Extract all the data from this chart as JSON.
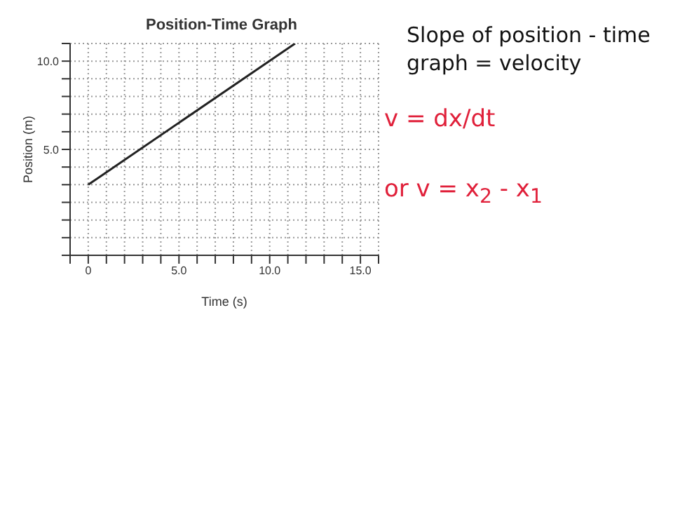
{
  "chart_data": {
    "type": "line",
    "title": "Position-Time Graph",
    "xlabel": "Time (s)",
    "ylabel": "Position (m)",
    "x": [
      0,
      11.4
    ],
    "series": [
      {
        "color": "#222222",
        "values": [
          3,
          11
        ]
      }
    ],
    "xlim": [
      -1,
      16
    ],
    "ylim": [
      -1,
      11
    ],
    "xticks": [
      {
        "value": -1,
        "label": null
      },
      {
        "value": 0,
        "label": "0"
      },
      {
        "value": 1,
        "label": null
      },
      {
        "value": 2,
        "label": null
      },
      {
        "value": 3,
        "label": null
      },
      {
        "value": 4,
        "label": null
      },
      {
        "value": 5,
        "label": "5.0"
      },
      {
        "value": 6,
        "label": null
      },
      {
        "value": 7,
        "label": null
      },
      {
        "value": 8,
        "label": null
      },
      {
        "value": 9,
        "label": null
      },
      {
        "value": 10,
        "label": "10.0"
      },
      {
        "value": 11,
        "label": null
      },
      {
        "value": 12,
        "label": null
      },
      {
        "value": 13,
        "label": null
      },
      {
        "value": 14,
        "label": null
      },
      {
        "value": 15,
        "label": "15.0"
      },
      {
        "value": 16,
        "label": null
      }
    ],
    "yticks": [
      {
        "value": -1,
        "label": null
      },
      {
        "value": 0,
        "label": null
      },
      {
        "value": 1,
        "label": null
      },
      {
        "value": 2,
        "label": null
      },
      {
        "value": 3,
        "label": null
      },
      {
        "value": 4,
        "label": null
      },
      {
        "value": 5,
        "label": "5.0"
      },
      {
        "value": 6,
        "label": null
      },
      {
        "value": 7,
        "label": null
      },
      {
        "value": 8,
        "label": null
      },
      {
        "value": 9,
        "label": null
      },
      {
        "value": 10,
        "label": "10.0"
      },
      {
        "value": 11,
        "label": null
      }
    ],
    "grid": true,
    "line_style": "solid",
    "marker": "none",
    "annotations": [
      "Slope of position - time graph = velocity",
      "v = dx/dt",
      "or v = x$_{2}$ - x$_{1}$"
    ]
  }
}
